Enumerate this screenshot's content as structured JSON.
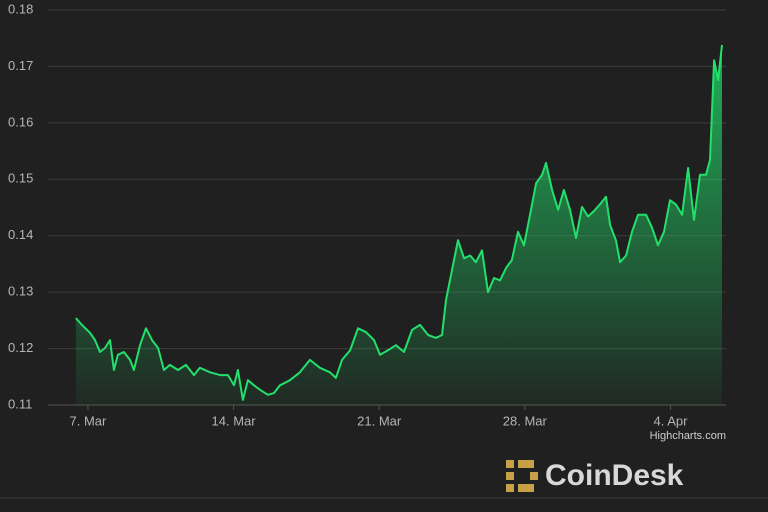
{
  "chart_data": {
    "type": "area",
    "x": [
      6.42,
      6.71,
      7.1,
      7.34,
      7.58,
      7.82,
      8.06,
      8.25,
      8.44,
      8.73,
      9.02,
      9.21,
      9.5,
      9.79,
      10.08,
      10.37,
      10.65,
      10.94,
      11.33,
      11.71,
      12.1,
      12.38,
      12.87,
      13.35,
      13.73,
      14.02,
      14.21,
      14.45,
      14.69,
      14.98,
      15.27,
      15.65,
      15.94,
      16.23,
      16.71,
      17.19,
      17.67,
      18.15,
      18.63,
      18.92,
      19.21,
      19.6,
      19.98,
      20.37,
      20.75,
      21.04,
      21.42,
      21.81,
      22.19,
      22.58,
      22.96,
      23.35,
      23.73,
      24.02,
      24.21,
      24.5,
      24.79,
      25.08,
      25.37,
      25.65,
      25.94,
      26.23,
      26.52,
      26.81,
      27.1,
      27.38,
      27.67,
      27.96,
      28.25,
      28.54,
      28.83,
      29.02,
      29.31,
      29.6,
      29.88,
      30.17,
      30.46,
      30.75,
      31.04,
      31.33,
      31.62,
      31.9,
      32.1,
      32.38,
      32.58,
      32.87,
      33.15,
      33.44,
      33.83,
      34.12,
      34.4,
      34.69,
      34.98,
      35.27,
      35.56,
      35.85,
      36.13,
      36.42,
      36.71,
      36.9,
      37.1,
      37.29,
      37.48
    ],
    "values": [
      0.1254,
      0.1242,
      0.1228,
      0.1215,
      0.1194,
      0.1201,
      0.1215,
      0.1162,
      0.1189,
      0.1194,
      0.118,
      0.1162,
      0.1206,
      0.1236,
      0.1215,
      0.1201,
      0.1162,
      0.1171,
      0.1162,
      0.1171,
      0.1153,
      0.1166,
      0.1158,
      0.1153,
      0.1153,
      0.1135,
      0.1162,
      0.1109,
      0.1144,
      0.1135,
      0.1127,
      0.1118,
      0.1121,
      0.1135,
      0.1144,
      0.1158,
      0.118,
      0.1166,
      0.1158,
      0.1148,
      0.118,
      0.1197,
      0.1236,
      0.1229,
      0.1215,
      0.1189,
      0.1197,
      0.1206,
      0.1194,
      0.1233,
      0.1242,
      0.1224,
      0.1219,
      0.1224,
      0.1286,
      0.1339,
      0.1392,
      0.136,
      0.1365,
      0.1353,
      0.1374,
      0.13,
      0.1325,
      0.1321,
      0.1343,
      0.1357,
      0.1407,
      0.1383,
      0.1437,
      0.1493,
      0.1508,
      0.1529,
      0.1481,
      0.1446,
      0.1481,
      0.1446,
      0.1396,
      0.1451,
      0.1434,
      0.1444,
      0.1456,
      0.1469,
      0.1419,
      0.1392,
      0.1353,
      0.1365,
      0.1407,
      0.1437,
      0.1437,
      0.1414,
      0.1383,
      0.1407,
      0.1463,
      0.1455,
      0.1437,
      0.152,
      0.1428,
      0.1508,
      0.1508,
      0.1534,
      0.1711,
      0.1676,
      0.1738
    ],
    "color": "#22e06b",
    "xlim": [
      5.08,
      37.67
    ],
    "xticks": [
      {
        "value": 7,
        "label": "7. Mar"
      },
      {
        "value": 14,
        "label": "14. Mar"
      },
      {
        "value": 21,
        "label": "21. Mar"
      },
      {
        "value": 28,
        "label": "28. Mar"
      },
      {
        "value": 35,
        "label": "4. Apr"
      }
    ],
    "ylim": [
      0.11,
      0.18
    ],
    "yticks": [
      0.11,
      0.12,
      0.13,
      0.14,
      0.15,
      0.16,
      0.17,
      0.18
    ],
    "grid": true,
    "credit": "Highcharts.com",
    "watermark": "CoinDesk"
  }
}
